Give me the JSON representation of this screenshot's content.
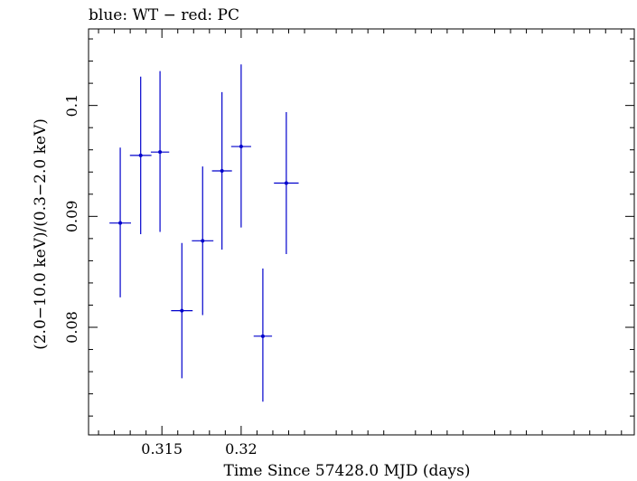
{
  "chart_data": {
    "type": "scatter",
    "title": "blue: WT − red: PC",
    "xlabel": "Time Since 57428.0 MJD (days)",
    "ylabel": "(2.0−10.0 keV)/(0.3−2.0 keV)",
    "xlim": [
      0.31037,
      0.34481
    ],
    "ylim": [
      0.0703,
      0.1069
    ],
    "x_ticks": [
      {
        "value": 0.315,
        "label": "0.315"
      },
      {
        "value": 0.32,
        "label": "0.32"
      }
    ],
    "y_ticks": [
      {
        "value": 0.08,
        "label": "0.08"
      },
      {
        "value": 0.09,
        "label": "0.09"
      },
      {
        "value": 0.1,
        "label": "0.1"
      }
    ],
    "grid": false,
    "series": [
      {
        "color": "#0000cc",
        "points": [
          {
            "x": 0.31237,
            "y": 0.0894,
            "xerr": 0.00068,
            "yerr_low": 0.0067,
            "yerr_high": 0.0068
          },
          {
            "x": 0.31366,
            "y": 0.0955,
            "xerr": 0.00068,
            "yerr_low": 0.0071,
            "yerr_high": 0.0071
          },
          {
            "x": 0.31488,
            "y": 0.0958,
            "xerr": 0.00058,
            "yerr_low": 0.0072,
            "yerr_high": 0.0073
          },
          {
            "x": 0.31626,
            "y": 0.0815,
            "xerr": 0.00068,
            "yerr_low": 0.0061,
            "yerr_high": 0.0061
          },
          {
            "x": 0.31757,
            "y": 0.0878,
            "xerr": 0.00068,
            "yerr_low": 0.0067,
            "yerr_high": 0.0067
          },
          {
            "x": 0.31879,
            "y": 0.0941,
            "xerr": 0.00063,
            "yerr_low": 0.0071,
            "yerr_high": 0.0071
          },
          {
            "x": 0.32,
            "y": 0.0963,
            "xerr": 0.00063,
            "yerr_low": 0.0073,
            "yerr_high": 0.0074
          },
          {
            "x": 0.32137,
            "y": 0.0792,
            "xerr": 0.00058,
            "yerr_low": 0.0059,
            "yerr_high": 0.0061
          },
          {
            "x": 0.32285,
            "y": 0.093,
            "xerr": 0.00078,
            "yerr_low": 0.0064,
            "yerr_high": 0.0064
          }
        ]
      }
    ]
  }
}
